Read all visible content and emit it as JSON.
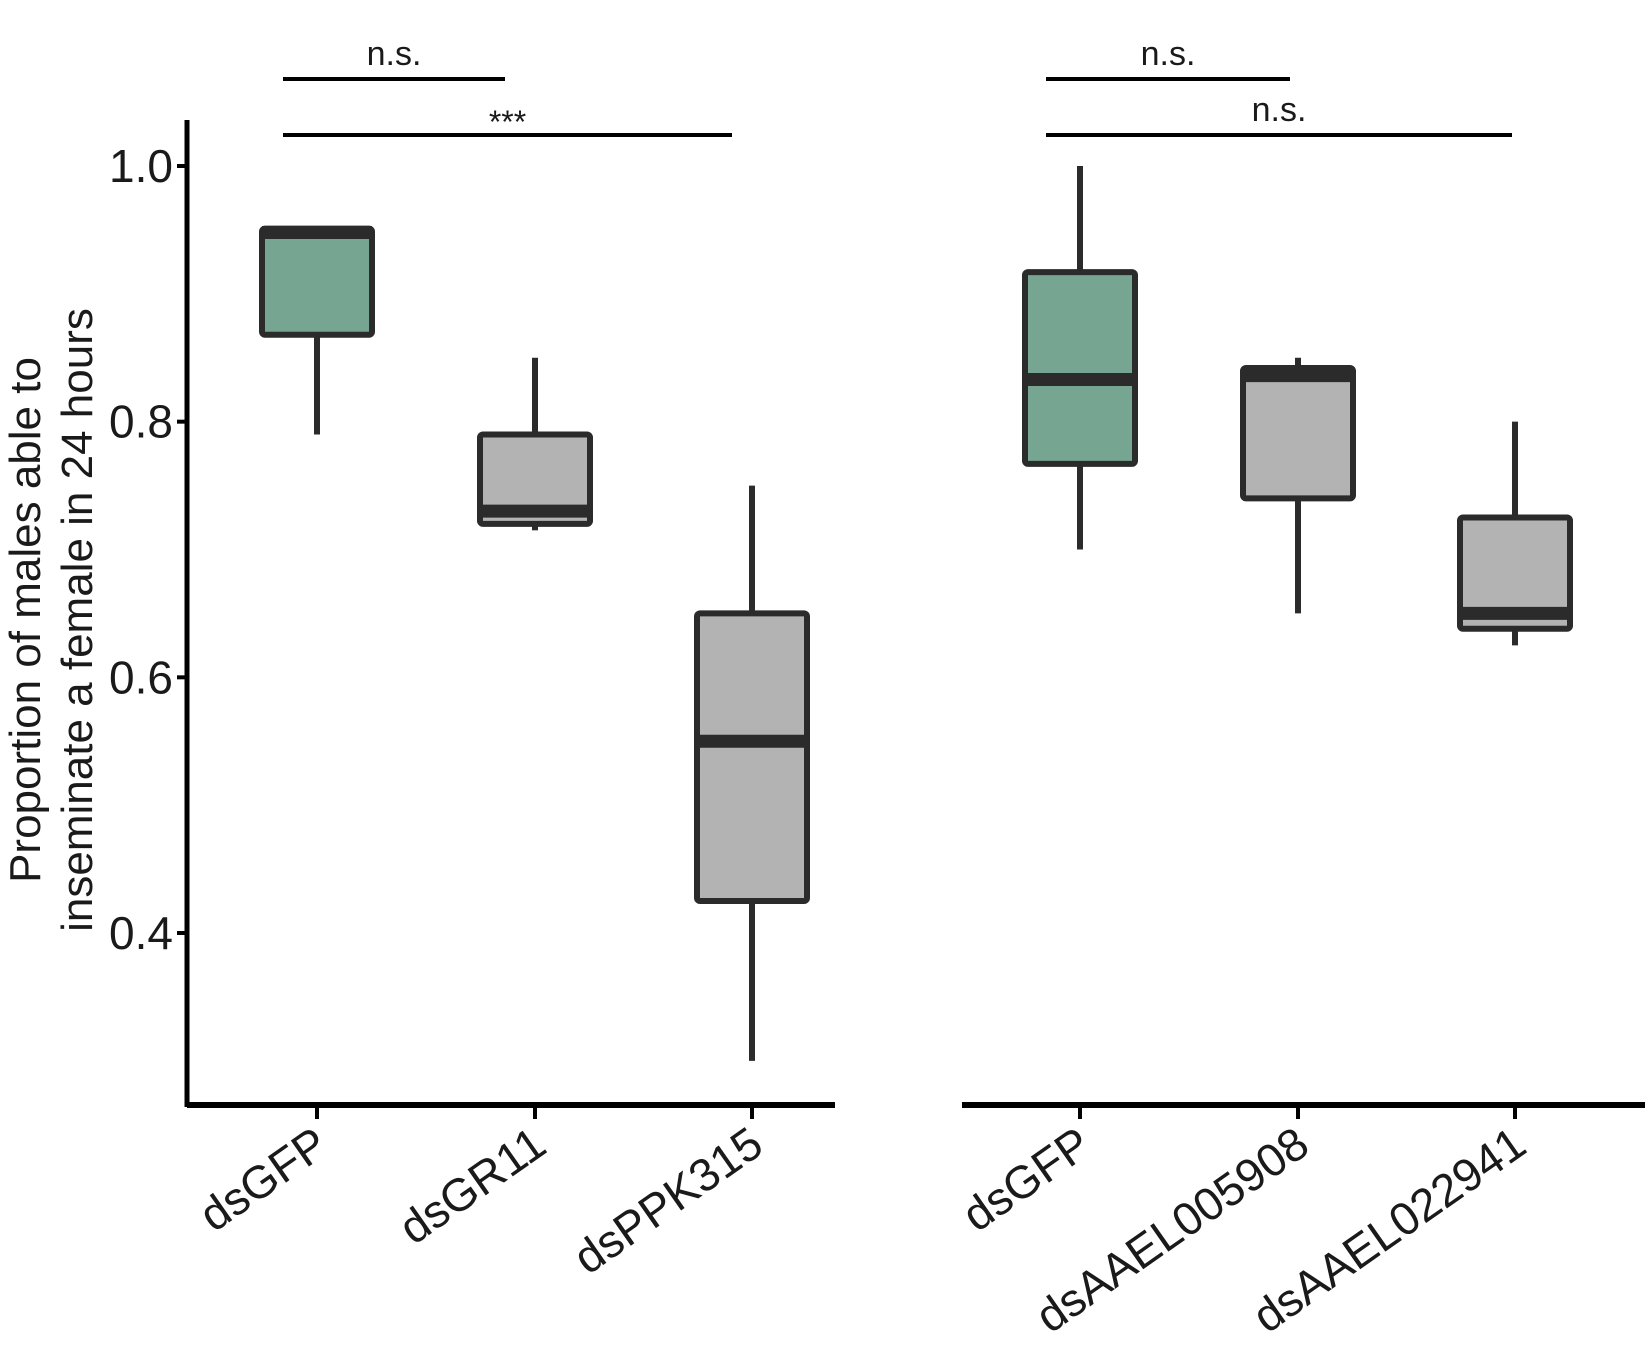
{
  "chart_data": [
    {
      "type": "box",
      "ylabel_lines": [
        "Proportion of males able to",
        "inseminate a female in 24 hours"
      ],
      "ylim": [
        0.27,
        1.03
      ],
      "yticks": [
        0.4,
        0.6,
        0.8,
        1.0
      ],
      "ytick_labels": [
        "0.4",
        "0.6",
        "0.8",
        "1.0"
      ],
      "categories": [
        "dsGFP",
        "dsGR11",
        "dsPPK315"
      ],
      "boxes": [
        {
          "label": "dsGFP",
          "color": "#76a592",
          "whisker_low": 0.79,
          "q1": 0.868,
          "median": 0.948,
          "q3": 0.951,
          "whisker_high": 0.951
        },
        {
          "label": "dsGR11",
          "color": "#b3b3b3",
          "whisker_low": 0.715,
          "q1": 0.72,
          "median": 0.73,
          "q3": 0.79,
          "whisker_high": 0.85
        },
        {
          "label": "dsPPK315",
          "color": "#b3b3b3",
          "whisker_low": 0.3,
          "q1": 0.425,
          "median": 0.55,
          "q3": 0.65,
          "whisker_high": 0.75
        }
      ],
      "comparisons": [
        {
          "from": "dsGFP",
          "to": "dsGR11",
          "label": "n.s."
        },
        {
          "from": "dsGFP",
          "to": "dsPPK315",
          "label": "***"
        }
      ]
    },
    {
      "type": "box",
      "ylim": [
        0.27,
        1.03
      ],
      "categories": [
        "dsGFP",
        "dsAAEL005908",
        "dsAAEL022941"
      ],
      "boxes": [
        {
          "label": "dsGFP",
          "color": "#76a592",
          "whisker_low": 0.7,
          "q1": 0.767,
          "median": 0.833,
          "q3": 0.917,
          "whisker_high": 1.0
        },
        {
          "label": "dsAAEL005908",
          "color": "#b3b3b3",
          "whisker_low": 0.65,
          "q1": 0.74,
          "median": 0.836,
          "q3": 0.842,
          "whisker_high": 0.85
        },
        {
          "label": "dsAAEL022941",
          "color": "#b3b3b3",
          "whisker_low": 0.625,
          "q1": 0.638,
          "median": 0.65,
          "q3": 0.725,
          "whisker_high": 0.8
        }
      ],
      "comparisons": [
        {
          "from": "dsGFP",
          "to": "dsAAEL005908",
          "label": "n.s."
        },
        {
          "from": "dsGFP",
          "to": "dsAAEL022941",
          "label": "n.s."
        }
      ]
    }
  ]
}
